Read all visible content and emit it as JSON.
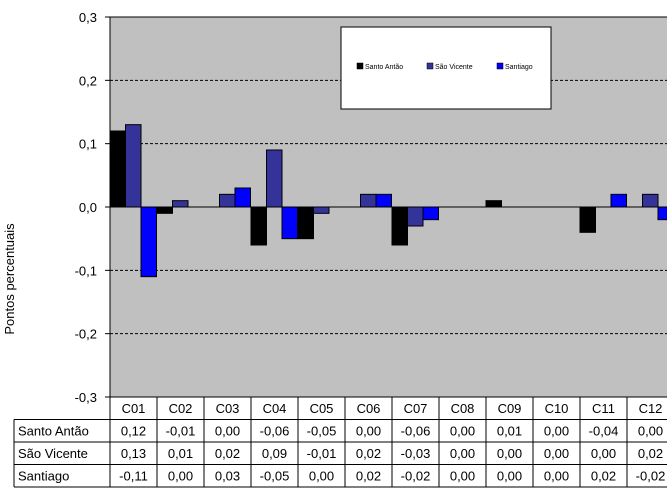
{
  "chart_data": {
    "type": "bar",
    "ylabel": "Pontos percentuais",
    "ylim": [
      -0.3,
      0.3
    ],
    "yticks": [
      -0.3,
      -0.2,
      -0.1,
      0.0,
      0.1,
      0.2,
      0.3
    ],
    "ytick_labels": [
      "-0,3",
      "-0,2",
      "-0,1",
      "0,0",
      "0,1",
      "0,2",
      "0,3"
    ],
    "grid": true,
    "legend_position": "top-right",
    "plot_background": "#c0c0c0",
    "categories": [
      "C01",
      "C02",
      "C03",
      "C04",
      "C05",
      "C06",
      "C07",
      "C08",
      "C09",
      "C10",
      "C11",
      "C12"
    ],
    "series": [
      {
        "name": "Santo Antão",
        "color": "#000000",
        "values": [
          0.12,
          -0.01,
          0.0,
          -0.06,
          -0.05,
          0.0,
          -0.06,
          0.0,
          0.01,
          0.0,
          -0.04,
          0.0
        ],
        "labels": [
          "0,12",
          "-0,01",
          "0,00",
          "-0,06",
          "-0,05",
          "0,00",
          "-0,06",
          "0,00",
          "0,01",
          "0,00",
          "-0,04",
          "0,00"
        ]
      },
      {
        "name": "São Vicente",
        "color": "#333399",
        "values": [
          0.13,
          0.01,
          0.02,
          0.09,
          -0.01,
          0.02,
          -0.03,
          0.0,
          0.0,
          0.0,
          0.0,
          0.02
        ],
        "labels": [
          "0,13",
          "0,01",
          "0,02",
          "0,09",
          "-0,01",
          "0,02",
          "-0,03",
          "0,00",
          "0,00",
          "0,00",
          "0,00",
          "0,02"
        ]
      },
      {
        "name": "Santiago",
        "color": "#0000ff",
        "values": [
          -0.11,
          0.0,
          0.03,
          -0.05,
          0.0,
          0.02,
          -0.02,
          0.0,
          0.0,
          0.0,
          0.02,
          -0.02
        ],
        "labels": [
          "-0,11",
          "0,00",
          "0,03",
          "-0,05",
          "0,00",
          "0,02",
          "-0,02",
          "0,00",
          "0,00",
          "0,00",
          "0,02",
          "-0,02"
        ]
      }
    ]
  }
}
